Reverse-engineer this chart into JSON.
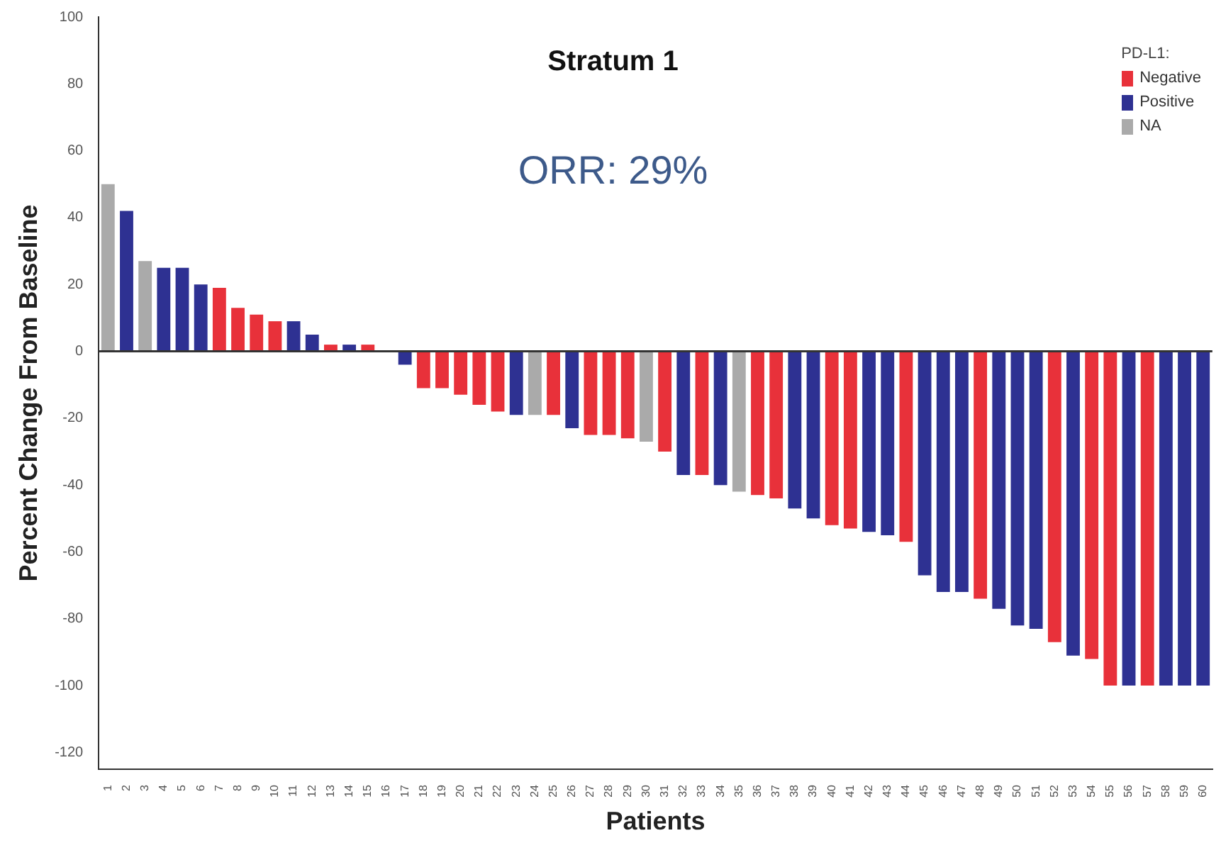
{
  "chart_data": {
    "type": "bar",
    "title": "Stratum 1",
    "xlabel": "Patients",
    "ylabel": "Percent Change From Baseline",
    "legend_title": "PD-L1:",
    "annotations": [
      "ORR: 29%"
    ],
    "categories": [
      "1",
      "2",
      "3",
      "4",
      "5",
      "6",
      "7",
      "8",
      "9",
      "10",
      "11",
      "12",
      "13",
      "14",
      "15",
      "16",
      "17",
      "18",
      "19",
      "20",
      "21",
      "22",
      "23",
      "24",
      "25",
      "26",
      "27",
      "28",
      "29",
      "30",
      "31",
      "32",
      "33",
      "34",
      "35",
      "36",
      "37",
      "38",
      "39",
      "40",
      "41",
      "42",
      "43",
      "44",
      "45",
      "46",
      "47",
      "48",
      "49",
      "50",
      "51",
      "52",
      "53",
      "54",
      "55",
      "56",
      "57",
      "58",
      "59",
      "60"
    ],
    "stacked": true,
    "series": [
      {
        "name": "Negative",
        "color": "#e8313a",
        "values": [
          null,
          null,
          null,
          null,
          null,
          null,
          19,
          13,
          11,
          9,
          null,
          null,
          2,
          null,
          2,
          null,
          null,
          -11,
          -11,
          -13,
          -16,
          -18,
          null,
          null,
          -19,
          null,
          -25,
          -25,
          -26,
          null,
          -30,
          null,
          -37,
          null,
          null,
          -43,
          -44,
          null,
          null,
          -52,
          -53,
          null,
          null,
          -57,
          null,
          null,
          null,
          -74,
          null,
          null,
          null,
          -87,
          null,
          -92,
          -100,
          null,
          -100,
          null,
          null,
          null
        ]
      },
      {
        "name": "Positive",
        "color": "#2e3192",
        "values": [
          null,
          42,
          null,
          25,
          25,
          20,
          null,
          null,
          null,
          null,
          9,
          5,
          null,
          2,
          null,
          null,
          -4,
          null,
          null,
          null,
          null,
          null,
          -19,
          null,
          null,
          -23,
          null,
          null,
          null,
          null,
          null,
          -37,
          null,
          -40,
          null,
          null,
          null,
          -47,
          -50,
          null,
          null,
          -54,
          -55,
          null,
          -67,
          -72,
          -72,
          null,
          -77,
          -82,
          -83,
          null,
          -91,
          null,
          null,
          -100,
          null,
          -100,
          -100,
          -100
        ]
      },
      {
        "name": "NA",
        "color": "#aaaaaa",
        "values": [
          50,
          null,
          27,
          null,
          null,
          null,
          null,
          null,
          null,
          null,
          null,
          null,
          null,
          null,
          null,
          null,
          null,
          null,
          null,
          null,
          null,
          null,
          null,
          -19,
          null,
          null,
          null,
          null,
          null,
          -27,
          null,
          null,
          null,
          null,
          -42,
          null,
          null,
          null,
          null,
          null,
          null,
          null,
          null,
          null,
          null,
          null,
          null,
          null,
          null,
          null,
          null,
          null,
          null,
          null,
          null,
          null,
          null,
          null,
          null,
          null
        ]
      }
    ],
    "ylim": [
      -125,
      100
    ],
    "yticks": [
      -120,
      -100,
      -80,
      -60,
      -40,
      -20,
      0,
      20,
      40,
      60,
      80,
      100
    ],
    "ref_lines": [
      {
        "axis": "y",
        "value": 0,
        "color": "#333333"
      }
    ],
    "grid": false,
    "legend": "top right"
  }
}
